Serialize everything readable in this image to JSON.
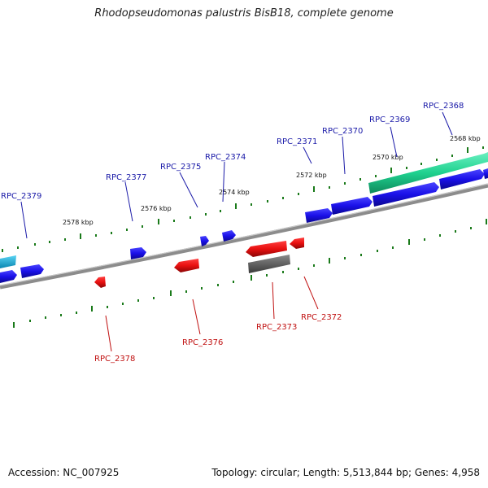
{
  "title": "Rhodopseudomonas palustris BisB18, complete genome",
  "footer": {
    "accession": "Accession: NC_007925",
    "summary": "Topology: circular; Length: 5,513,844 bp; Genes: 4,958"
  },
  "colors": {
    "forward": "#1a10e8",
    "reverse": "#e81010",
    "rna": "#1fd18f",
    "cyan": "#18b4e0",
    "pseudo": "#5a5a5a",
    "backbone": "#7a7a7a",
    "tick": "#1a7a1a",
    "forward_label": "#1a1aa8",
    "reverse_label": "#c01010"
  },
  "ticks": [
    {
      "label": "2568 kbp"
    },
    {
      "label": "2570 kbp"
    },
    {
      "label": "2572 kbp"
    },
    {
      "label": "2574 kbp"
    },
    {
      "label": "2576 kbp"
    },
    {
      "label": "2578 kbp"
    }
  ],
  "forward_labels": [
    "RPC_2368",
    "RPC_2369",
    "RPC_2370",
    "RPC_2371",
    "RPC_2374",
    "RPC_2375",
    "RPC_2377",
    "RPC_2379"
  ],
  "reverse_labels": [
    "RPC_2372",
    "RPC_2373",
    "RPC_2376",
    "RPC_2378"
  ]
}
